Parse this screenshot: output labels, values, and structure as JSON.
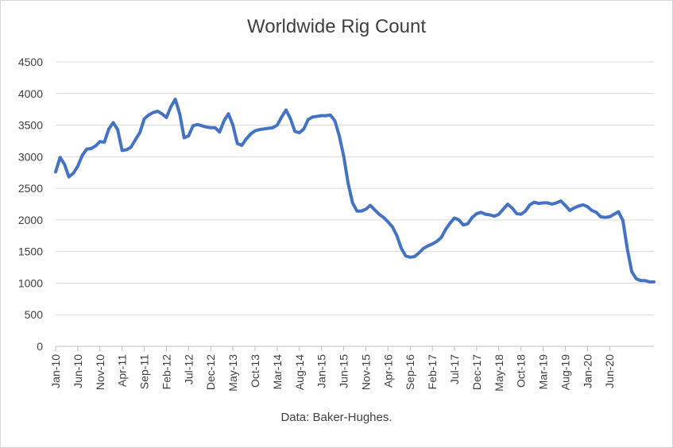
{
  "chart_data": {
    "type": "line",
    "title": "Worldwide Rig Count",
    "note": "Data: Baker-Hughes.",
    "xlabel": "",
    "ylabel": "",
    "ylim": [
      0,
      4500
    ],
    "yticks": [
      0,
      500,
      1000,
      1500,
      2000,
      2500,
      3000,
      3500,
      4000,
      4500
    ],
    "grid": true,
    "legend": "none",
    "x_tick_labels": [
      "Jan-10",
      "Jun-10",
      "Nov-10",
      "Apr-11",
      "Sep-11",
      "Feb-12",
      "Jul-12",
      "Dec-12",
      "May-13",
      "Oct-13",
      "Mar-14",
      "Aug-14",
      "Jan-15",
      "Jun-15",
      "Nov-15",
      "Apr-16",
      "Sep-16",
      "Feb-17",
      "Jul-17",
      "Dec-17",
      "May-18",
      "Oct-18",
      "Mar-19",
      "Aug-19",
      "Jan-20",
      "Jun-20"
    ],
    "line_color": "#4472C4",
    "series": [
      {
        "x_start": "Jan-10",
        "frequency": "monthly",
        "values": [
          2760,
          2990,
          2880,
          2680,
          2740,
          2850,
          3020,
          3120,
          3130,
          3170,
          3240,
          3230,
          3440,
          3540,
          3430,
          3100,
          3110,
          3150,
          3270,
          3380,
          3600,
          3660,
          3700,
          3720,
          3680,
          3620,
          3790,
          3910,
          3680,
          3300,
          3330,
          3490,
          3510,
          3490,
          3470,
          3460,
          3460,
          3390,
          3570,
          3680,
          3500,
          3210,
          3180,
          3280,
          3360,
          3410,
          3430,
          3440,
          3450,
          3460,
          3500,
          3630,
          3740,
          3600,
          3400,
          3380,
          3440,
          3590,
          3630,
          3640,
          3650,
          3650,
          3660,
          3570,
          3330,
          3010,
          2580,
          2270,
          2140,
          2140,
          2170,
          2230,
          2160,
          2090,
          2040,
          1970,
          1890,
          1750,
          1550,
          1430,
          1410,
          1420,
          1480,
          1550,
          1590,
          1620,
          1660,
          1720,
          1850,
          1950,
          2030,
          2000,
          1920,
          1940,
          2040,
          2100,
          2120,
          2090,
          2080,
          2060,
          2090,
          2170,
          2250,
          2190,
          2100,
          2090,
          2140,
          2240,
          2280,
          2260,
          2270,
          2270,
          2250,
          2270,
          2300,
          2230,
          2150,
          2190,
          2220,
          2240,
          2210,
          2150,
          2120,
          2050,
          2040,
          2050,
          2090,
          2130,
          1990,
          1540,
          1180,
          1070,
          1040,
          1040,
          1020,
          1020
        ]
      }
    ]
  }
}
